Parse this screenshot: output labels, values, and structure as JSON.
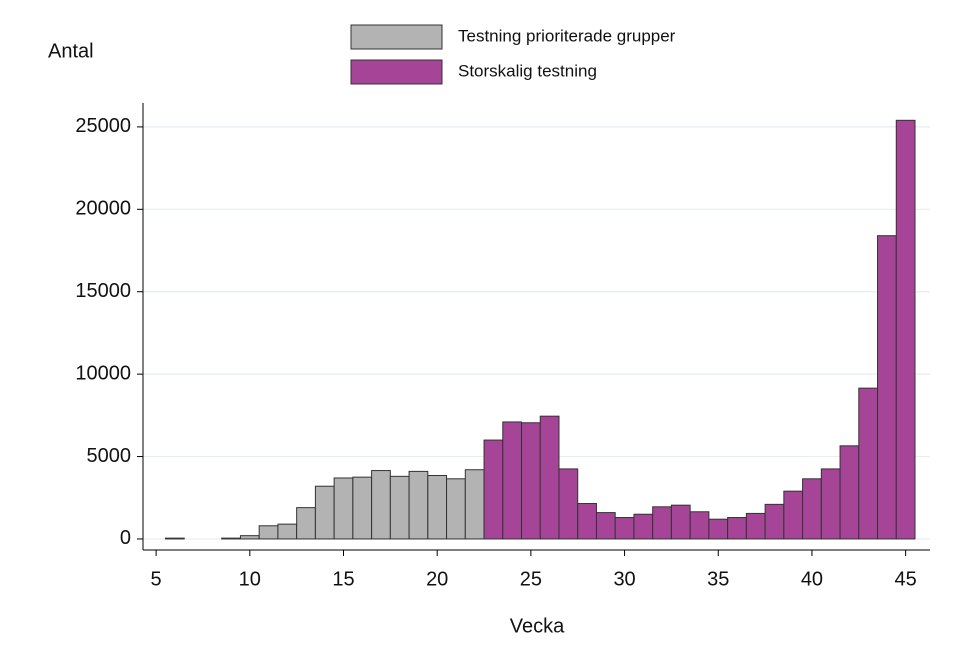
{
  "chart_data": {
    "type": "bar",
    "x": [
      6,
      7,
      8,
      9,
      10,
      11,
      12,
      13,
      14,
      15,
      16,
      17,
      18,
      19,
      20,
      21,
      22,
      23,
      24,
      25,
      26,
      27,
      28,
      29,
      30,
      31,
      32,
      33,
      34,
      35,
      36,
      37,
      38,
      39,
      40,
      41,
      42,
      43,
      44,
      45
    ],
    "series": [
      {
        "name": "Testning prioriterade grupper",
        "color": "#b3b3b3",
        "values": [
          50,
          null,
          null,
          50,
          200,
          800,
          900,
          1900,
          3200,
          3700,
          3750,
          4150,
          3800,
          4100,
          3850,
          3650,
          4200,
          null,
          null,
          null,
          null,
          null,
          null,
          null,
          null,
          null,
          null,
          null,
          null,
          null,
          null,
          null,
          null,
          null,
          null,
          null,
          null,
          null,
          null,
          null
        ]
      },
      {
        "name": "Storskalig testning",
        "color": "#a64598",
        "values": [
          null,
          null,
          null,
          null,
          null,
          null,
          null,
          null,
          null,
          null,
          null,
          null,
          null,
          null,
          null,
          null,
          null,
          6000,
          7100,
          7050,
          7450,
          4250,
          2150,
          1600,
          1300,
          1500,
          1950,
          2050,
          1650,
          1200,
          1300,
          1550,
          2100,
          2900,
          3650,
          4250,
          5650,
          9150,
          18400,
          25400
        ]
      }
    ],
    "y_label": "Antal",
    "x_label": "Vecka",
    "xlim": [
      4.3,
      46.3
    ],
    "xticks": [
      5,
      10,
      15,
      20,
      25,
      30,
      35,
      40,
      45
    ],
    "ylim": [
      -670,
      26450
    ],
    "yticks": [
      0,
      5000,
      10000,
      15000,
      20000,
      25000
    ],
    "grid": true
  }
}
